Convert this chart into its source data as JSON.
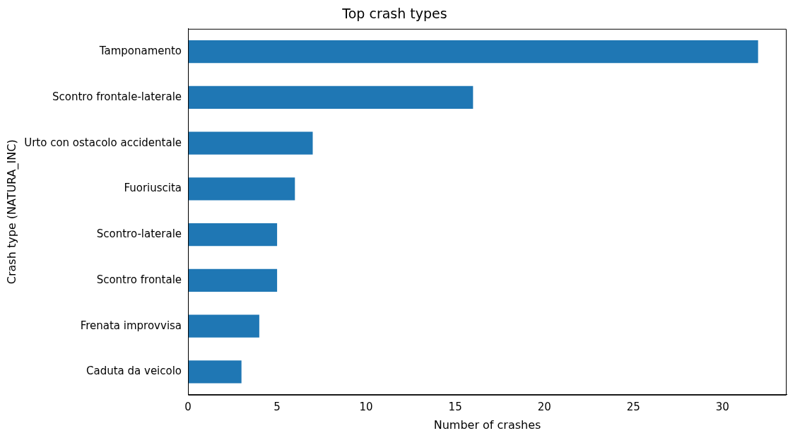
{
  "chart_data": {
    "type": "bar",
    "orientation": "horizontal",
    "title": "Top crash types",
    "xlabel": "Number of crashes",
    "ylabel": "Crash type (NATURA_INC)",
    "categories": [
      "Tamponamento",
      "Scontro frontale-laterale",
      "Urto con ostacolo accidentale",
      "Fuoriuscita",
      "Scontro-laterale",
      "Scontro frontale",
      "Frenata improvvisa",
      "Caduta da veicolo"
    ],
    "values": [
      32,
      16,
      7,
      6,
      5,
      5,
      4,
      3
    ],
    "color": "#1f77b4",
    "xlim": [
      0,
      33.6
    ],
    "xticks": [
      0,
      5,
      10,
      15,
      20,
      25,
      30
    ]
  }
}
